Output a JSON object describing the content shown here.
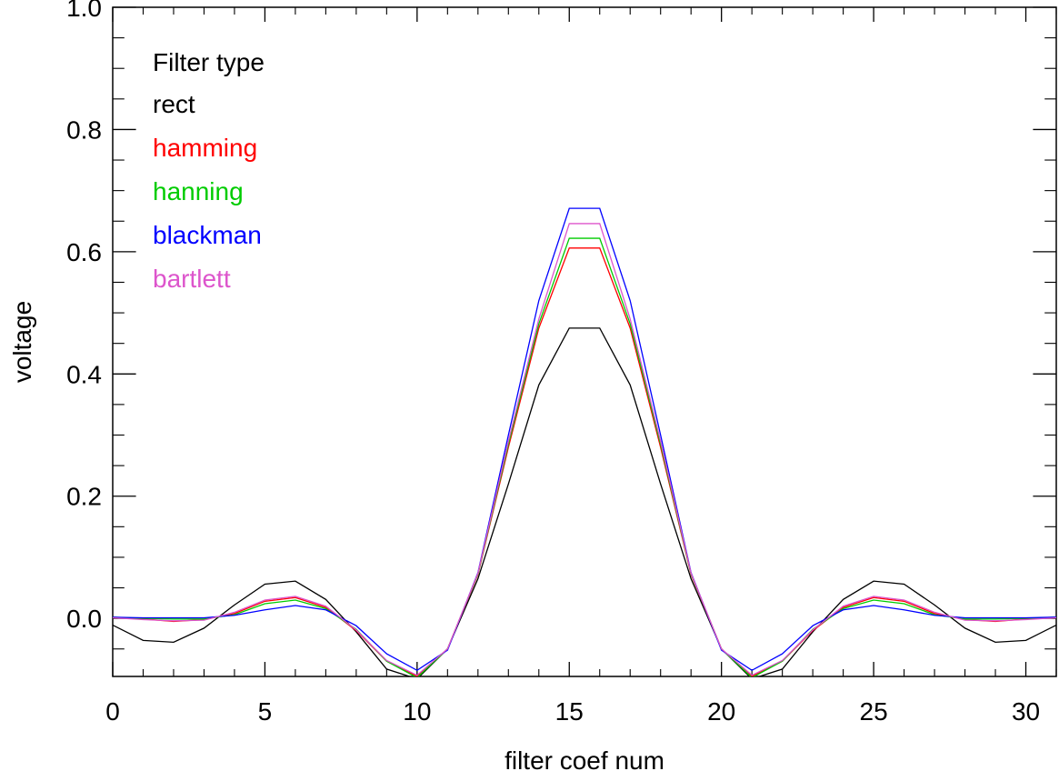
{
  "chart_data": {
    "type": "line",
    "xlabel": "filter coef num",
    "ylabel": "voltage",
    "xlim": [
      0,
      31
    ],
    "ylim": [
      -0.095,
      1.0
    ],
    "x_ticks": [
      0,
      5,
      10,
      15,
      20,
      25,
      30
    ],
    "y_ticks": [
      0.0,
      0.2,
      0.4,
      0.6,
      0.8,
      1.0
    ],
    "x_tick_labels": [
      "0",
      "5",
      "10",
      "15",
      "20",
      "25",
      "30"
    ],
    "y_tick_labels": [
      "0.0",
      "0.2",
      "0.4",
      "0.6",
      "0.8",
      "1.0"
    ],
    "grid": false,
    "legend": {
      "title": "Filter type",
      "placement": "top-left"
    },
    "x": [
      0,
      1,
      2,
      3,
      4,
      5,
      6,
      7,
      8,
      9,
      10,
      11,
      12,
      13,
      14,
      15,
      16,
      17,
      18,
      19,
      20,
      21,
      22,
      23,
      24,
      25,
      26,
      27,
      28,
      29,
      30,
      31
    ],
    "series": [
      {
        "name": "rect",
        "color": "#000000",
        "values": [
          -0.011,
          -0.036,
          -0.039,
          -0.016,
          0.022,
          0.056,
          0.061,
          0.031,
          -0.022,
          -0.083,
          -0.099,
          -0.05,
          0.065,
          0.22,
          0.382,
          0.475,
          0.475,
          0.382,
          0.22,
          0.065,
          -0.05,
          -0.099,
          -0.083,
          -0.022,
          0.031,
          0.061,
          0.056,
          0.022,
          -0.016,
          -0.039,
          -0.036,
          -0.011
        ]
      },
      {
        "name": "hamming",
        "color": "#ff0000",
        "values": [
          0.002,
          -0.001,
          -0.005,
          -0.002,
          0.008,
          0.028,
          0.034,
          0.018,
          -0.02,
          -0.07,
          -0.095,
          -0.05,
          0.072,
          0.28,
          0.475,
          0.606,
          0.606,
          0.475,
          0.28,
          0.072,
          -0.05,
          -0.095,
          -0.07,
          -0.02,
          0.018,
          0.034,
          0.028,
          0.008,
          -0.002,
          -0.005,
          -0.001,
          0.002
        ]
      },
      {
        "name": "hanning",
        "color": "#00cc00",
        "values": [
          0.002,
          0.0,
          -0.001,
          -0.001,
          0.006,
          0.024,
          0.03,
          0.016,
          -0.018,
          -0.07,
          -0.097,
          -0.05,
          0.073,
          0.285,
          0.482,
          0.622,
          0.622,
          0.482,
          0.285,
          0.073,
          -0.05,
          -0.097,
          -0.07,
          -0.018,
          0.016,
          0.03,
          0.024,
          0.006,
          -0.001,
          -0.001,
          0.0,
          0.002
        ]
      },
      {
        "name": "blackman",
        "color": "#0000ff",
        "values": [
          0.002,
          0.001,
          0.001,
          0.001,
          0.005,
          0.014,
          0.021,
          0.014,
          -0.012,
          -0.058,
          -0.085,
          -0.052,
          0.075,
          0.3,
          0.52,
          0.671,
          0.671,
          0.52,
          0.3,
          0.075,
          -0.052,
          -0.085,
          -0.058,
          -0.012,
          0.014,
          0.021,
          0.014,
          0.005,
          0.001,
          0.001,
          0.001,
          0.002
        ]
      },
      {
        "name": "bartlett",
        "color": "#dd55cc",
        "values": [
          0.001,
          -0.002,
          -0.004,
          -0.003,
          0.01,
          0.03,
          0.036,
          0.02,
          -0.019,
          -0.069,
          -0.093,
          -0.05,
          0.074,
          0.29,
          0.49,
          0.646,
          0.646,
          0.49,
          0.29,
          0.074,
          -0.05,
          -0.093,
          -0.069,
          -0.019,
          0.02,
          0.036,
          0.03,
          0.01,
          -0.003,
          -0.004,
          -0.002,
          0.001
        ]
      }
    ]
  }
}
